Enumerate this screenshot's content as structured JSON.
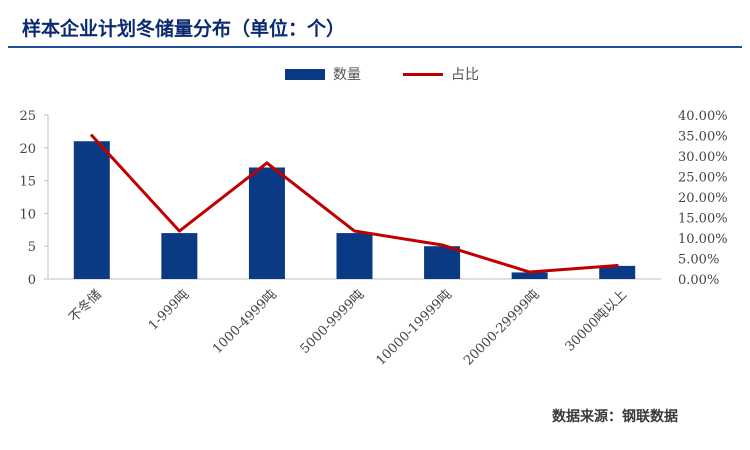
{
  "title": "样本企业计划冬储量分布（单位：个）",
  "source": "数据来源：钢联数据",
  "legend": {
    "bar_label": "数量",
    "line_label": "占比"
  },
  "colors": {
    "bar": "#0b3a84",
    "line": "#c00000",
    "title": "#0b2a6f"
  },
  "chart_data": {
    "type": "bar",
    "categories": [
      "不冬储",
      "1-999吨",
      "1000-4999吨",
      "5000-9999吨",
      "10000-19999吨",
      "20000-29999吨",
      "30000吨以上"
    ],
    "series": [
      {
        "name": "数量",
        "type": "bar",
        "axis": "left",
        "values": [
          21,
          7,
          17,
          7,
          5,
          1,
          2
        ]
      },
      {
        "name": "占比",
        "type": "line",
        "axis": "right",
        "values": [
          35.0,
          11.7,
          28.3,
          11.7,
          8.3,
          1.7,
          3.3
        ]
      }
    ],
    "y_left": {
      "lim": [
        0,
        25
      ],
      "ticks": [
        "0",
        "5",
        "10",
        "15",
        "20",
        "25"
      ]
    },
    "y_right": {
      "lim": [
        0,
        40
      ],
      "ticks": [
        "0.00%",
        "5.00%",
        "10.00%",
        "15.00%",
        "20.00%",
        "25.00%",
        "30.00%",
        "35.00%",
        "40.00%"
      ]
    },
    "grid": false,
    "legend_position": "top-center"
  }
}
